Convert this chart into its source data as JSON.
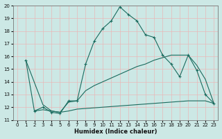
{
  "xlabel": "Humidex (Indice chaleur)",
  "xlim": [
    -0.5,
    23.5
  ],
  "ylim": [
    11,
    20
  ],
  "xticks": [
    0,
    1,
    2,
    3,
    4,
    5,
    6,
    7,
    8,
    9,
    10,
    11,
    12,
    13,
    14,
    15,
    16,
    17,
    18,
    19,
    20,
    21,
    22,
    23
  ],
  "yticks": [
    11,
    12,
    13,
    14,
    15,
    16,
    17,
    18,
    19,
    20
  ],
  "bg_color": "#cce8e5",
  "grid_color": "#b0d8d5",
  "line_color": "#1a6b5e",
  "line1_x": [
    1,
    2,
    3,
    4,
    5,
    6,
    7,
    8,
    9,
    10,
    11,
    12,
    13,
    14,
    15,
    16,
    17,
    18,
    19,
    20,
    21,
    22,
    23
  ],
  "line1_y": [
    15.7,
    11.7,
    12.0,
    11.6,
    11.5,
    12.5,
    12.5,
    15.4,
    17.2,
    18.2,
    18.8,
    19.9,
    19.3,
    18.8,
    17.7,
    17.5,
    16.1,
    15.4,
    14.4,
    16.1,
    14.9,
    13.0,
    12.3
  ],
  "line2_x": [
    1,
    3,
    4,
    5,
    6,
    7,
    8,
    9,
    10,
    11,
    12,
    13,
    14,
    15,
    16,
    17,
    18,
    19,
    20,
    21,
    22,
    23
  ],
  "line2_y": [
    15.7,
    12.2,
    11.7,
    11.6,
    12.4,
    12.5,
    13.3,
    13.7,
    14.0,
    14.3,
    14.6,
    14.9,
    15.2,
    15.4,
    15.7,
    15.9,
    16.1,
    16.1,
    16.1,
    15.3,
    14.2,
    12.3
  ],
  "line3_x": [
    2,
    3,
    4,
    5,
    6,
    7,
    8,
    9,
    10,
    11,
    12,
    13,
    14,
    15,
    16,
    17,
    18,
    19,
    20,
    21,
    22,
    23
  ],
  "line3_y": [
    11.7,
    11.8,
    11.7,
    11.6,
    11.7,
    11.85,
    11.9,
    11.95,
    12.0,
    12.05,
    12.1,
    12.15,
    12.2,
    12.25,
    12.3,
    12.35,
    12.4,
    12.45,
    12.5,
    12.5,
    12.5,
    12.3
  ]
}
